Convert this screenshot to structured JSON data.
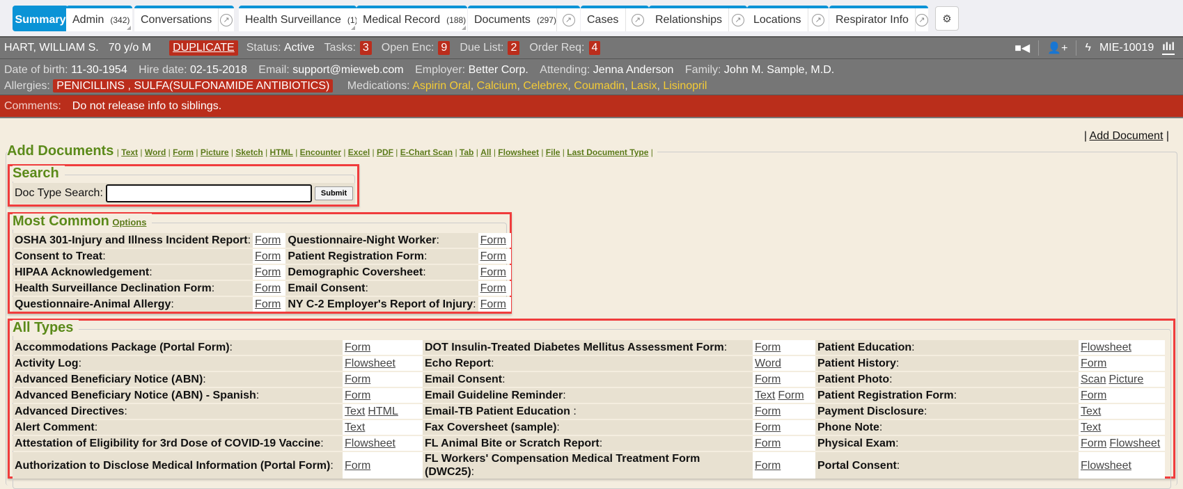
{
  "tabs": [
    {
      "label": "Summary",
      "active": true
    },
    {
      "label": "Admin",
      "count": "(342)",
      "menu": true
    },
    {
      "label": "Conversations",
      "popout": true
    },
    {
      "label": "Health Surveillance",
      "count": "(1)",
      "menu": true
    },
    {
      "label": "Medical Record",
      "count": "(188)",
      "menu": true
    },
    {
      "label": "Documents",
      "count": "(297)",
      "popout": true
    },
    {
      "label": "Cases",
      "popout": true
    },
    {
      "label": "Relationships",
      "popout": true
    },
    {
      "label": "Locations",
      "popout": true
    },
    {
      "label": "Respirator Info",
      "popout": true
    }
  ],
  "patient": {
    "name": "HART, WILLIAM S.",
    "age_sex": "70 y/o M",
    "flag": "DUPLICATE",
    "status_label": "Status:",
    "status": "Active",
    "tasks_label": "Tasks:",
    "tasks": "3",
    "open_enc_label": "Open Enc:",
    "open_enc": "9",
    "due_list_label": "Due List:",
    "due_list": "2",
    "order_req_label": "Order Req:",
    "order_req": "4",
    "mrn": "MIE-10019",
    "dob_label": "Date of birth:",
    "dob": "11-30-1954",
    "hire_label": "Hire date:",
    "hire": "02-15-2018",
    "email_label": "Email:",
    "email": "support@mieweb.com",
    "employer_label": "Employer:",
    "employer": "Better Corp.",
    "attending_label": "Attending:",
    "attending": "Jenna Anderson",
    "family_label": "Family:",
    "family": "John M. Sample, M.D.",
    "allergies_label": "Allergies:",
    "allergies": "PENICILLINS , SULFA(SULFONAMIDE ANTIBIOTICS)",
    "medications_label": "Medications:",
    "medications": [
      "Aspirin Oral",
      "Calcium",
      "Celebrex",
      "Coumadin",
      "Lasix",
      "Lisinopril"
    ],
    "comments_label": "Comments:",
    "comments": "Do not release info to siblings."
  },
  "colors": {
    "accent": "#0a93d6",
    "alert": "#bb2d1c",
    "heading": "#5b8a1a",
    "medication": "#f5cc35"
  },
  "add_document_link": "Add Document",
  "add_documents": {
    "title": "Add Documents",
    "links": [
      "Text",
      "Word",
      "Form",
      "Picture",
      "Sketch",
      "HTML",
      "Encounter",
      "Excel",
      "PDF",
      "E-Chart Scan",
      "Tab",
      "All",
      "Flowsheet",
      "File",
      "Last Document Type"
    ]
  },
  "search": {
    "title": "Search",
    "label": "Doc Type Search:",
    "value": "",
    "submit": "Submit"
  },
  "most_common": {
    "title": "Most Common",
    "options": "Options",
    "rows": [
      [
        {
          "name": "OSHA 301-Injury and Illness Incident Report",
          "links": [
            "Form"
          ]
        },
        {
          "name": "Questionnaire-Night Worker",
          "links": [
            "Form"
          ]
        }
      ],
      [
        {
          "name": "Consent to Treat",
          "links": [
            "Form"
          ]
        },
        {
          "name": "Patient Registration Form",
          "links": [
            "Form"
          ]
        }
      ],
      [
        {
          "name": "HIPAA Acknowledgement",
          "links": [
            "Form"
          ]
        },
        {
          "name": "Demographic Coversheet",
          "links": [
            "Form"
          ]
        }
      ],
      [
        {
          "name": "Health Surveillance Declination Form",
          "links": [
            "Form"
          ]
        },
        {
          "name": "Email Consent",
          "links": [
            "Form"
          ]
        }
      ],
      [
        {
          "name": "Questionnaire-Animal Allergy",
          "links": [
            "Form"
          ]
        },
        {
          "name": "NY C-2 Employer's Report of Injury",
          "links": [
            "Form"
          ]
        }
      ]
    ]
  },
  "all_types": {
    "title": "All Types",
    "rows": [
      [
        {
          "name": "Accommodations Package (Portal Form)",
          "links": [
            "Form"
          ]
        },
        {
          "name": "DOT Insulin-Treated Diabetes Mellitus Assessment Form",
          "links": [
            "Form"
          ]
        },
        {
          "name": "Patient Education",
          "links": [
            "Flowsheet"
          ]
        }
      ],
      [
        {
          "name": "Activity Log",
          "links": [
            "Flowsheet"
          ]
        },
        {
          "name": "Echo Report",
          "links": [
            "Word"
          ]
        },
        {
          "name": "Patient History",
          "links": [
            "Form"
          ]
        }
      ],
      [
        {
          "name": "Advanced Beneficiary Notice (ABN)",
          "links": [
            "Form"
          ]
        },
        {
          "name": "Email Consent",
          "links": [
            "Form"
          ]
        },
        {
          "name": "Patient Photo",
          "links": [
            "Scan",
            "Picture"
          ]
        }
      ],
      [
        {
          "name": "Advanced Beneficiary Notice (ABN) - Spanish",
          "links": [
            "Form"
          ]
        },
        {
          "name": "Email Guideline Reminder",
          "links": [
            "Text",
            "Form"
          ]
        },
        {
          "name": "Patient Registration Form",
          "links": [
            "Form"
          ]
        }
      ],
      [
        {
          "name": "Advanced Directives",
          "links": [
            "Text",
            "HTML"
          ]
        },
        {
          "name": "Email-TB Patient Education ",
          "links": [
            "Form"
          ]
        },
        {
          "name": "Payment Disclosure",
          "links": [
            "Text"
          ]
        }
      ],
      [
        {
          "name": "Alert Comment",
          "links": [
            "Text"
          ]
        },
        {
          "name": "Fax Coversheet (sample)",
          "links": [
            "Form"
          ]
        },
        {
          "name": "Phone Note",
          "links": [
            "Text"
          ]
        }
      ],
      [
        {
          "name": "Attestation of Eligibility for 3rd Dose of COVID-19 Vaccine",
          "links": [
            "Flowsheet"
          ]
        },
        {
          "name": "FL Animal Bite or Scratch Report",
          "links": [
            "Form"
          ]
        },
        {
          "name": "Physical Exam",
          "links": [
            "Form",
            "Flowsheet"
          ]
        }
      ],
      [
        {
          "name": "Authorization to Disclose Medical Information (Portal Form)",
          "links": [
            "Form"
          ]
        },
        {
          "name": "FL Workers' Compensation Medical Treatment Form (DWC25)",
          "links": [
            "Form"
          ]
        },
        {
          "name": "Portal Consent",
          "links": [
            "Flowsheet"
          ]
        }
      ]
    ]
  }
}
